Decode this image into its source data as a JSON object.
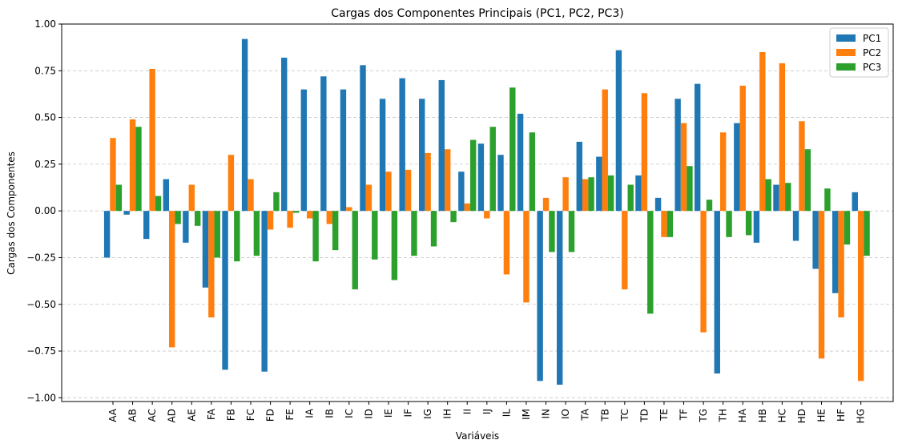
{
  "chart_data": {
    "type": "bar",
    "title": "Cargas dos Componentes Principais (PC1, PC2, PC3)",
    "xlabel": "Variáveis",
    "ylabel": "Cargas dos Componentes",
    "ylim": [
      -1.02,
      1.0
    ],
    "yticks": [
      -1.0,
      -0.75,
      -0.5,
      -0.25,
      0.0,
      0.25,
      0.5,
      0.75,
      1.0
    ],
    "ytick_labels": [
      "−1.00",
      "−0.75",
      "−0.50",
      "−0.25",
      "0.00",
      "0.25",
      "0.50",
      "0.75",
      "1.00"
    ],
    "grid": "y-dashed",
    "legend_position": "top-right",
    "categories": [
      "AA",
      "AB",
      "AC",
      "AD",
      "AE",
      "FA",
      "FB",
      "FC",
      "FD",
      "FE",
      "IA",
      "IB",
      "IC",
      "ID",
      "IE",
      "IF",
      "IG",
      "IH",
      "II",
      "IJ",
      "IL",
      "IM",
      "IN",
      "IO",
      "TA",
      "TB",
      "TC",
      "TD",
      "TE",
      "TF",
      "TG",
      "TH",
      "HA",
      "HB",
      "HC",
      "HD",
      "HE",
      "HF",
      "HG"
    ],
    "series": [
      {
        "name": "PC1",
        "color": "#1f77b4",
        "values": [
          -0.25,
          -0.02,
          -0.15,
          0.17,
          -0.17,
          -0.41,
          -0.85,
          0.92,
          -0.86,
          0.82,
          0.65,
          0.72,
          0.65,
          0.78,
          0.6,
          0.71,
          0.6,
          0.7,
          0.21,
          0.36,
          0.3,
          0.52,
          -0.91,
          -0.93,
          0.37,
          0.29,
          0.86,
          0.19,
          0.07,
          0.6,
          0.68,
          -0.87,
          0.47,
          -0.17,
          0.14,
          -0.16,
          -0.31,
          -0.44,
          0.1
        ]
      },
      {
        "name": "PC2",
        "color": "#ff7f0e",
        "values": [
          0.39,
          0.49,
          0.76,
          -0.73,
          0.14,
          -0.57,
          0.3,
          0.17,
          -0.1,
          -0.09,
          -0.04,
          -0.07,
          0.02,
          0.14,
          0.21,
          0.22,
          0.31,
          0.33,
          0.04,
          -0.04,
          -0.34,
          -0.49,
          0.07,
          0.18,
          0.17,
          0.65,
          -0.42,
          0.63,
          -0.14,
          0.47,
          -0.65,
          0.42,
          0.67,
          0.85,
          0.79,
          0.48,
          -0.79,
          -0.57,
          -0.91
        ]
      },
      {
        "name": "PC3",
        "color": "#2ca02c",
        "values": [
          0.14,
          0.45,
          0.08,
          -0.07,
          -0.08,
          -0.25,
          -0.27,
          -0.24,
          0.1,
          -0.01,
          -0.27,
          -0.21,
          -0.42,
          -0.26,
          -0.37,
          -0.24,
          -0.19,
          -0.06,
          0.38,
          0.45,
          0.66,
          0.42,
          -0.22,
          -0.22,
          0.18,
          0.19,
          0.14,
          -0.55,
          -0.14,
          0.24,
          0.06,
          -0.14,
          -0.13,
          0.17,
          0.15,
          0.33,
          0.12,
          -0.18,
          -0.24
        ]
      }
    ]
  }
}
